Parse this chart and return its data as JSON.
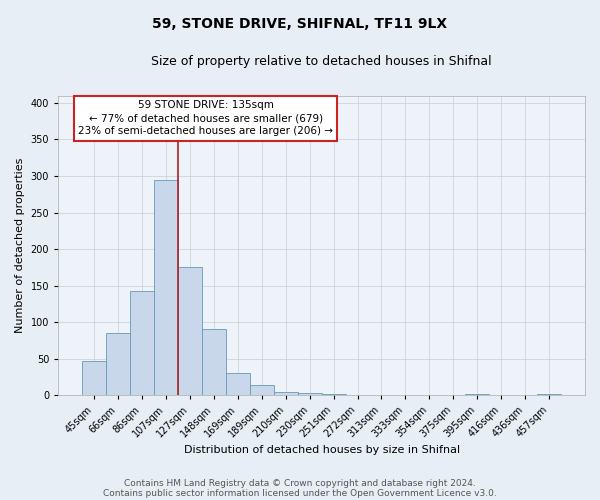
{
  "title1": "59, STONE DRIVE, SHIFNAL, TF11 9LX",
  "title2": "Size of property relative to detached houses in Shifnal",
  "xlabel": "Distribution of detached houses by size in Shifnal",
  "ylabel": "Number of detached properties",
  "footer1": "Contains HM Land Registry data © Crown copyright and database right 2024.",
  "footer2": "Contains public sector information licensed under the Open Government Licence v3.0.",
  "bin_labels": [
    "45sqm",
    "66sqm",
    "86sqm",
    "107sqm",
    "127sqm",
    "148sqm",
    "169sqm",
    "189sqm",
    "210sqm",
    "230sqm",
    "251sqm",
    "272sqm",
    "313sqm",
    "333sqm",
    "354sqm",
    "375sqm",
    "395sqm",
    "416sqm",
    "436sqm",
    "457sqm"
  ],
  "bar_heights": [
    47,
    86,
    143,
    295,
    175,
    91,
    30,
    14,
    5,
    3,
    2,
    0,
    0,
    0,
    0,
    0,
    2,
    0,
    0,
    2
  ],
  "bar_color": "#c8d8ea",
  "bar_edge_color": "#6699bb",
  "vline_x": 3.5,
  "vline_color": "#aa2222",
  "annotation_title": "59 STONE DRIVE: 135sqm",
  "annotation_line1": "← 77% of detached houses are smaller (679)",
  "annotation_line2": "23% of semi-detached houses are larger (206) →",
  "annotation_box_facecolor": "white",
  "annotation_box_edgecolor": "#cc2222",
  "ylim": [
    0,
    410
  ],
  "yticks": [
    0,
    50,
    100,
    150,
    200,
    250,
    300,
    350,
    400
  ],
  "bg_color": "#e8eef5",
  "plot_bg_color": "#eef3f9",
  "grid_color": "#c8cdd4",
  "title1_fontsize": 10,
  "title2_fontsize": 9,
  "xlabel_fontsize": 8,
  "ylabel_fontsize": 8,
  "tick_fontsize": 7,
  "footer_fontsize": 6.5
}
